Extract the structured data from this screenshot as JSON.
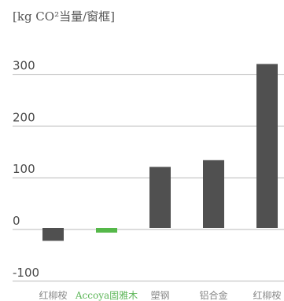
{
  "chart_data": {
    "type": "bar",
    "unit_label": "[kg CO²当量/窗框]",
    "categories": [
      "红柳桉",
      "Accoya固雅木",
      "塑钢",
      "铝合金",
      "红柳桉"
    ],
    "values": [
      -25,
      -8,
      118,
      131,
      317
    ],
    "highlight_index": 1,
    "yticks": [
      300,
      200,
      100,
      0,
      -100
    ],
    "ylim": [
      -130,
      330
    ],
    "grid": true,
    "colors": {
      "bar": "#505050",
      "highlight": "#55b849",
      "grid": "#b9b9b9"
    }
  }
}
